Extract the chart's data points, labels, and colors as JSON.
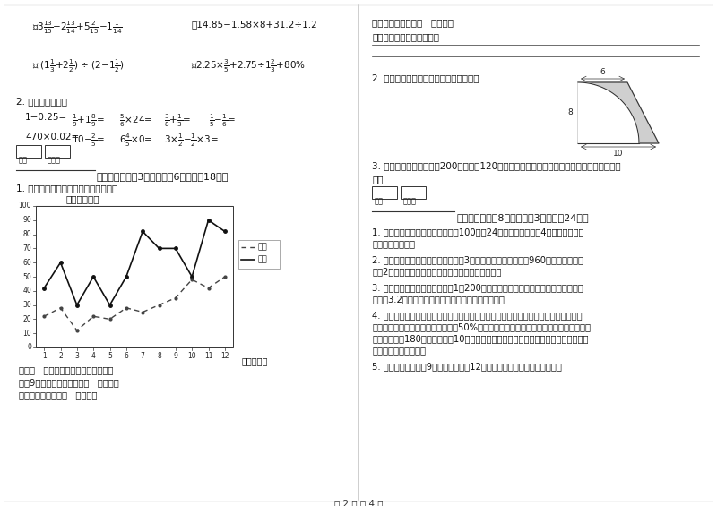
{
  "page_bg": "#ffffff",
  "page_title": "第 2 页 共 4 页",
  "income": [
    42,
    60,
    30,
    50,
    30,
    50,
    82,
    70,
    70,
    50,
    90,
    82
  ],
  "expense": [
    22,
    28,
    12,
    22,
    20,
    28,
    25,
    30,
    35,
    48,
    42,
    50
  ],
  "legend_income": "收入",
  "legend_expense": "支出",
  "chart_title": "全额（万元）",
  "xlabel": "月份（月）",
  "section5_header": "五、综合题（共3小题，每题6分，共计18分）",
  "section6_header": "六、应用题（共8小题，每题3分，共计24分）",
  "sub_q1": "⑴、（   ）月份收入和支出相差最小。",
  "sub_q2": "⑵、9月份收入和支出相差（   ）万元。",
  "sub_q3": "⑶、全年实际收入（   ）万元。"
}
